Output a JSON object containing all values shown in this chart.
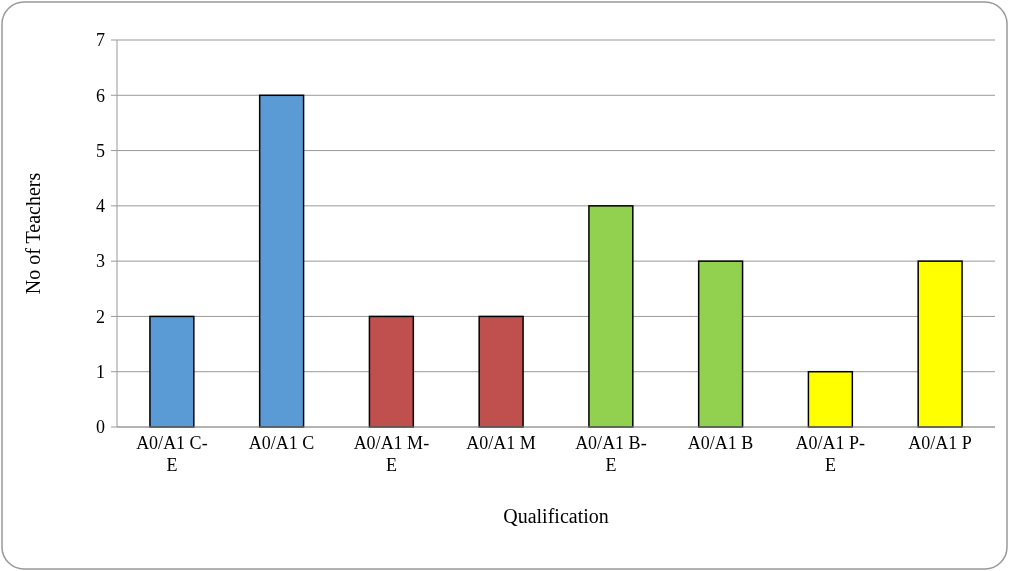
{
  "chart_data": {
    "type": "bar",
    "xlabel": "Qualification",
    "ylabel": "No of Teachers",
    "categories": [
      "A0/A1 C-E",
      "A0/A1 C",
      "A0/A1 M-E",
      "A0/A1 M",
      "A0/A1 B-E",
      "A0/A1 B",
      "A0/A1 P-E",
      "A0/A1 P"
    ],
    "values": [
      2,
      6,
      2,
      2,
      4,
      3,
      1,
      3
    ],
    "colors": [
      "#5b9bd5",
      "#5b9bd5",
      "#c0504d",
      "#c0504d",
      "#92d050",
      "#92d050",
      "#ffff00",
      "#ffff00"
    ],
    "ylim": [
      0,
      7
    ],
    "yticks": [
      0,
      1,
      2,
      3,
      4,
      5,
      6,
      7
    ],
    "grid": "y"
  }
}
